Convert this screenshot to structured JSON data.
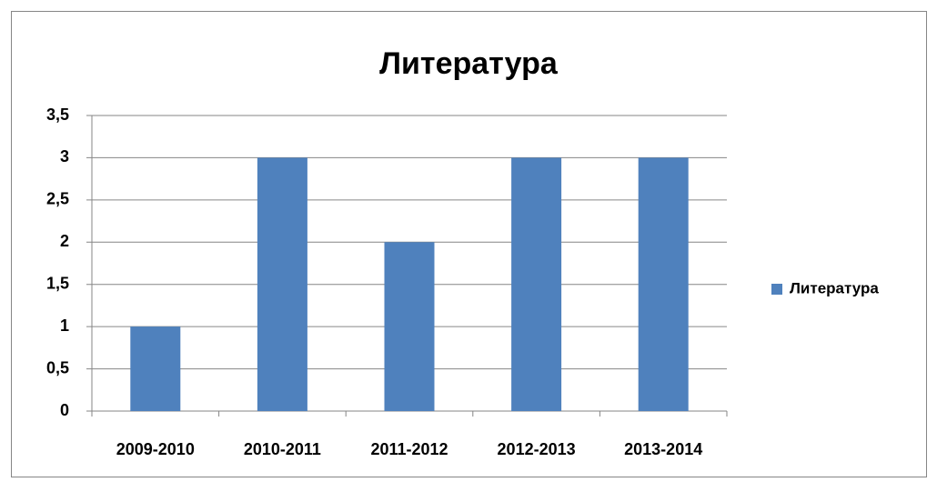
{
  "chart_data": {
    "type": "bar",
    "title": "Литература",
    "categories": [
      "2009-2010",
      "2010-2011",
      "2011-2012",
      "2012-2013",
      "2013-2014"
    ],
    "series": [
      {
        "name": "Литература",
        "color": "#4f81bd",
        "values": [
          1,
          3,
          2,
          3,
          3
        ]
      }
    ],
    "ylim": [
      0,
      3.5
    ],
    "yticks": [
      0,
      {
        "value": 0.5,
        "label": "0,5"
      },
      1,
      {
        "value": 1.5,
        "label": "1,5"
      },
      2,
      {
        "value": 2.5,
        "label": "2,5"
      },
      3,
      {
        "value": 3.5,
        "label": "3,5"
      }
    ],
    "grid": true,
    "legend": "right"
  }
}
